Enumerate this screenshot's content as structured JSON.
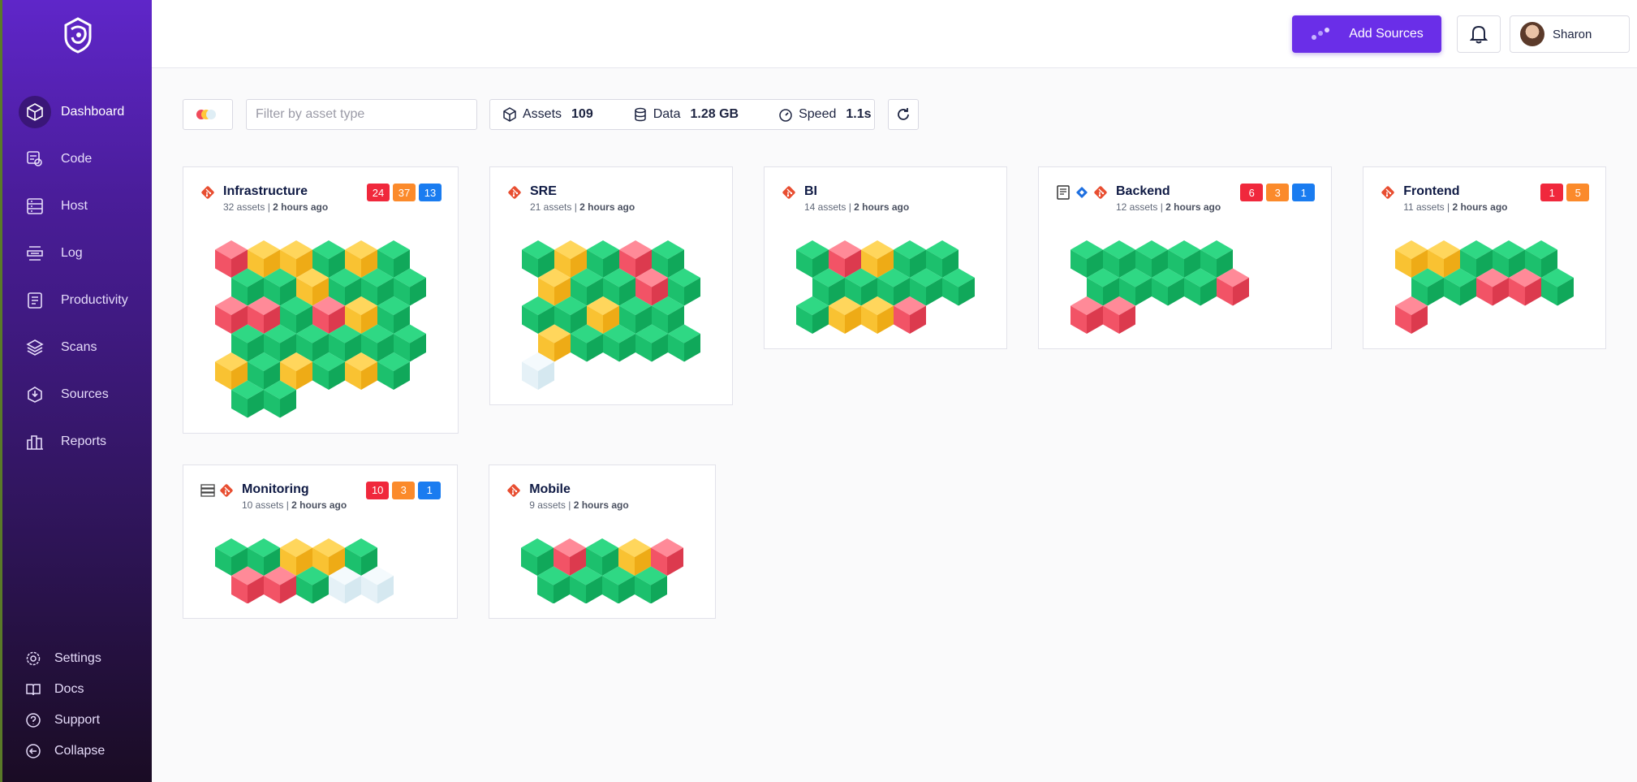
{
  "sidebar": {
    "nav": [
      "Dashboard",
      "Code",
      "Host",
      "Log",
      "Productivity",
      "Scans",
      "Sources",
      "Reports"
    ],
    "footer": [
      "Settings",
      "Docs",
      "Support",
      "Collapse"
    ]
  },
  "header": {
    "add_sources": "Add Sources",
    "user": "Sharon"
  },
  "toolbar": {
    "filter_placeholder": "Filter by asset type",
    "stats": [
      {
        "label": "Assets",
        "value": 109
      },
      {
        "label": "Data",
        "value": "1.28 GB"
      },
      {
        "label": "Speed",
        "value": "1.1s"
      }
    ]
  },
  "cards": [
    {
      "title": "Infrastructure",
      "assets": "32 assets",
      "updated": "2 hours ago",
      "badges": [
        24,
        37,
        13
      ],
      "cubes": [
        [
          "red",
          "yellow",
          "yellow",
          "green",
          "yellow",
          "green"
        ],
        [
          "green",
          "green",
          "yellow",
          "green",
          "green",
          "green"
        ],
        [
          "red",
          "red",
          "green",
          "red",
          "yellow",
          "green"
        ],
        [
          "green",
          "green",
          "green",
          "green",
          "green",
          "green"
        ],
        [
          "yellow",
          "green",
          "yellow",
          "green",
          "yellow",
          "green"
        ],
        [
          "green",
          "green"
        ]
      ]
    },
    {
      "title": "SRE",
      "assets": "21 assets",
      "updated": "2 hours ago",
      "cubes": [
        [
          "green",
          "yellow",
          "green",
          "red",
          "green"
        ],
        [
          "yellow",
          "green",
          "green",
          "red",
          "green"
        ],
        [
          "green",
          "green",
          "yellow",
          "green",
          "green"
        ],
        [
          "yellow",
          "green",
          "green",
          "green",
          "green"
        ],
        [
          "white"
        ]
      ]
    },
    {
      "title": "BI",
      "assets": "14 assets",
      "updated": "2 hours ago",
      "cubes": [
        [
          "green",
          "red",
          "yellow",
          "green",
          "green"
        ],
        [
          "green",
          "green",
          "green",
          "green",
          "green"
        ],
        [
          "green",
          "yellow",
          "yellow",
          "red"
        ]
      ]
    },
    {
      "title": "Backend",
      "assets": "12 assets",
      "updated": "2 hours ago",
      "badges": [
        6,
        3,
        1
      ],
      "cubes": [
        [
          "green",
          "green",
          "green",
          "green",
          "green"
        ],
        [
          "green",
          "green",
          "green",
          "green",
          "red"
        ],
        [
          "red",
          "red"
        ]
      ]
    },
    {
      "title": "Frontend",
      "assets": "11 assets",
      "updated": "2 hours ago",
      "badges": [
        1,
        5
      ],
      "cubes": [
        [
          "yellow",
          "yellow",
          "green",
          "green",
          "green"
        ],
        [
          "green",
          "green",
          "red",
          "red",
          "green"
        ],
        [
          "red"
        ]
      ]
    },
    {
      "title": "Monitoring",
      "assets": "10 assets",
      "updated": "2 hours ago",
      "badges": [
        10,
        3,
        1
      ],
      "cubes": [
        [
          "green",
          "green",
          "yellow",
          "yellow",
          "green"
        ],
        [
          "red",
          "red",
          "green",
          "white",
          "white"
        ]
      ]
    },
    {
      "title": "Mobile",
      "assets": "9 assets",
      "updated": "2 hours ago",
      "cubes": [
        [
          "green",
          "red",
          "green",
          "yellow",
          "red"
        ],
        [
          "green",
          "green",
          "green",
          "green"
        ]
      ]
    }
  ]
}
